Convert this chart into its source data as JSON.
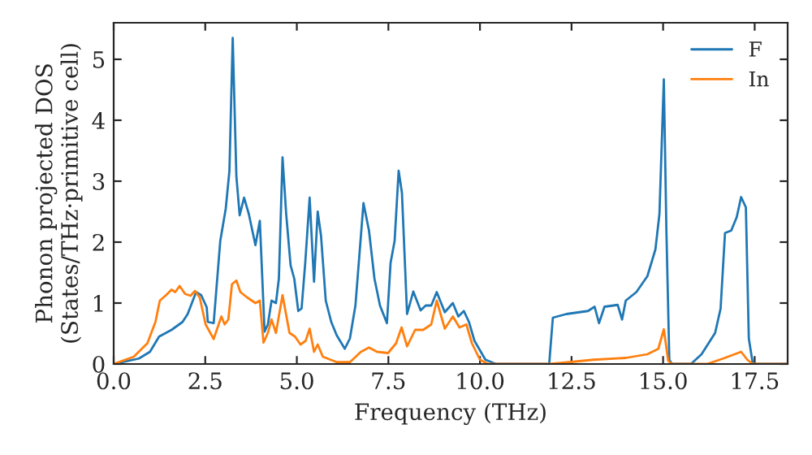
{
  "chart_data": {
    "type": "line",
    "xlabel": "Frequency (THz)",
    "ylabel": "Phonon projected DOS\n(States/THz·primitive cell)",
    "xlim": [
      0,
      18.4
    ],
    "ylim": [
      0,
      5.6
    ],
    "xticks": [
      {
        "value": 0,
        "label": "0.0"
      },
      2.5,
      {
        "value": 5,
        "label": "5.0"
      },
      7.5,
      {
        "value": 10,
        "label": "10.0"
      },
      12.5,
      {
        "value": 15,
        "label": "15.0"
      },
      17.5
    ],
    "yticks": [
      0,
      1,
      2,
      3,
      4,
      5
    ],
    "grid": false,
    "legend": "top right",
    "marker": "none",
    "line_style": "solid",
    "series": [
      {
        "name": "F",
        "color": "#1f77b4",
        "x": [
          0,
          0.69,
          0.99,
          1.24,
          1.58,
          1.88,
          2.02,
          2.25,
          2.39,
          2.54,
          2.57,
          2.73,
          2.91,
          3.06,
          3.16,
          3.25,
          3.35,
          3.44,
          3.56,
          3.69,
          3.87,
          3.99,
          4.12,
          4.21,
          4.31,
          4.43,
          4.51,
          4.61,
          4.71,
          4.83,
          4.93,
          5.04,
          5.13,
          5.23,
          5.35,
          5.47,
          5.57,
          5.66,
          5.79,
          5.94,
          6.09,
          6.31,
          6.45,
          6.6,
          6.82,
          6.97,
          7.12,
          7.27,
          7.46,
          7.56,
          7.67,
          7.78,
          7.87,
          8.01,
          8.18,
          8.38,
          8.52,
          8.67,
          8.82,
          8.94,
          9.04,
          9.26,
          9.41,
          9.56,
          9.7,
          9.85,
          10.15,
          10.44,
          11.89,
          11.99,
          12.36,
          12.95,
          13.13,
          13.25,
          13.4,
          13.76,
          13.88,
          13.98,
          14.27,
          14.57,
          14.79,
          14.9,
          15.02,
          15.09,
          15.17,
          15.24,
          15.76,
          16.05,
          16.42,
          16.57,
          16.69,
          16.86,
          17.01,
          17.13,
          17.26,
          17.34,
          17.45,
          18.4
        ],
        "values": [
          0,
          0.09,
          0.2,
          0.45,
          0.56,
          0.69,
          0.82,
          1.18,
          1.13,
          0.93,
          0.69,
          0.67,
          2.02,
          2.55,
          3.17,
          5.35,
          3.08,
          2.44,
          2.73,
          2.46,
          1.95,
          2.35,
          0.53,
          0.65,
          1.04,
          1.0,
          1.4,
          3.39,
          2.46,
          1.62,
          1.4,
          0.87,
          0.91,
          1.66,
          2.73,
          1.35,
          2.5,
          2.11,
          1.04,
          0.69,
          0.47,
          0.25,
          0.42,
          0.96,
          2.64,
          2.19,
          1.4,
          0.96,
          0.67,
          1.66,
          2.02,
          3.17,
          2.81,
          0.82,
          1.19,
          0.88,
          0.96,
          0.96,
          1.18,
          1.0,
          0.85,
          1.0,
          0.78,
          0.87,
          0.69,
          0.38,
          0.07,
          0,
          0,
          0.76,
          0.82,
          0.87,
          0.94,
          0.67,
          0.94,
          0.97,
          0.73,
          1.04,
          1.18,
          1.44,
          1.88,
          2.46,
          4.67,
          2.19,
          0.07,
          0,
          0,
          0.16,
          0.51,
          0.91,
          2.15,
          2.19,
          2.41,
          2.74,
          2.57,
          0.42,
          0,
          0
        ]
      },
      {
        "name": "In",
        "color": "#ff7f0e",
        "x": [
          0,
          0.55,
          0.92,
          1.14,
          1.26,
          1.43,
          1.58,
          1.68,
          1.8,
          1.95,
          2.1,
          2.22,
          2.35,
          2.51,
          2.73,
          2.94,
          3.03,
          3.13,
          3.23,
          3.35,
          3.46,
          3.65,
          3.87,
          3.99,
          4.09,
          4.21,
          4.31,
          4.43,
          4.61,
          4.8,
          4.95,
          5.1,
          5.24,
          5.35,
          5.47,
          5.57,
          5.71,
          6.09,
          6.45,
          6.75,
          6.97,
          7.19,
          7.49,
          7.71,
          7.86,
          8.01,
          8.23,
          8.45,
          8.67,
          8.82,
          9.04,
          9.26,
          9.44,
          9.63,
          9.78,
          10.0,
          10.22,
          11.9,
          12.43,
          13.1,
          13.98,
          14.57,
          14.87,
          15.02,
          15.14,
          15.24,
          16.2,
          16.64,
          17.13,
          17.3,
          17.45,
          18.4
        ],
        "values": [
          0,
          0.12,
          0.34,
          0.69,
          1.04,
          1.13,
          1.22,
          1.18,
          1.28,
          1.15,
          1.12,
          1.2,
          1.09,
          0.65,
          0.41,
          0.78,
          0.65,
          0.73,
          1.31,
          1.37,
          1.18,
          1.09,
          1.0,
          1.04,
          0.35,
          0.51,
          0.73,
          0.51,
          1.13,
          0.51,
          0.45,
          0.32,
          0.38,
          0.58,
          0.2,
          0.32,
          0.12,
          0.03,
          0.03,
          0.2,
          0.27,
          0.2,
          0.18,
          0.34,
          0.6,
          0.29,
          0.56,
          0.56,
          0.65,
          1.04,
          0.58,
          0.78,
          0.6,
          0.65,
          0.34,
          0.07,
          0,
          0,
          0.03,
          0.07,
          0.1,
          0.16,
          0.25,
          0.57,
          0.05,
          0,
          0,
          0.09,
          0.2,
          0.07,
          0,
          0
        ]
      }
    ]
  }
}
